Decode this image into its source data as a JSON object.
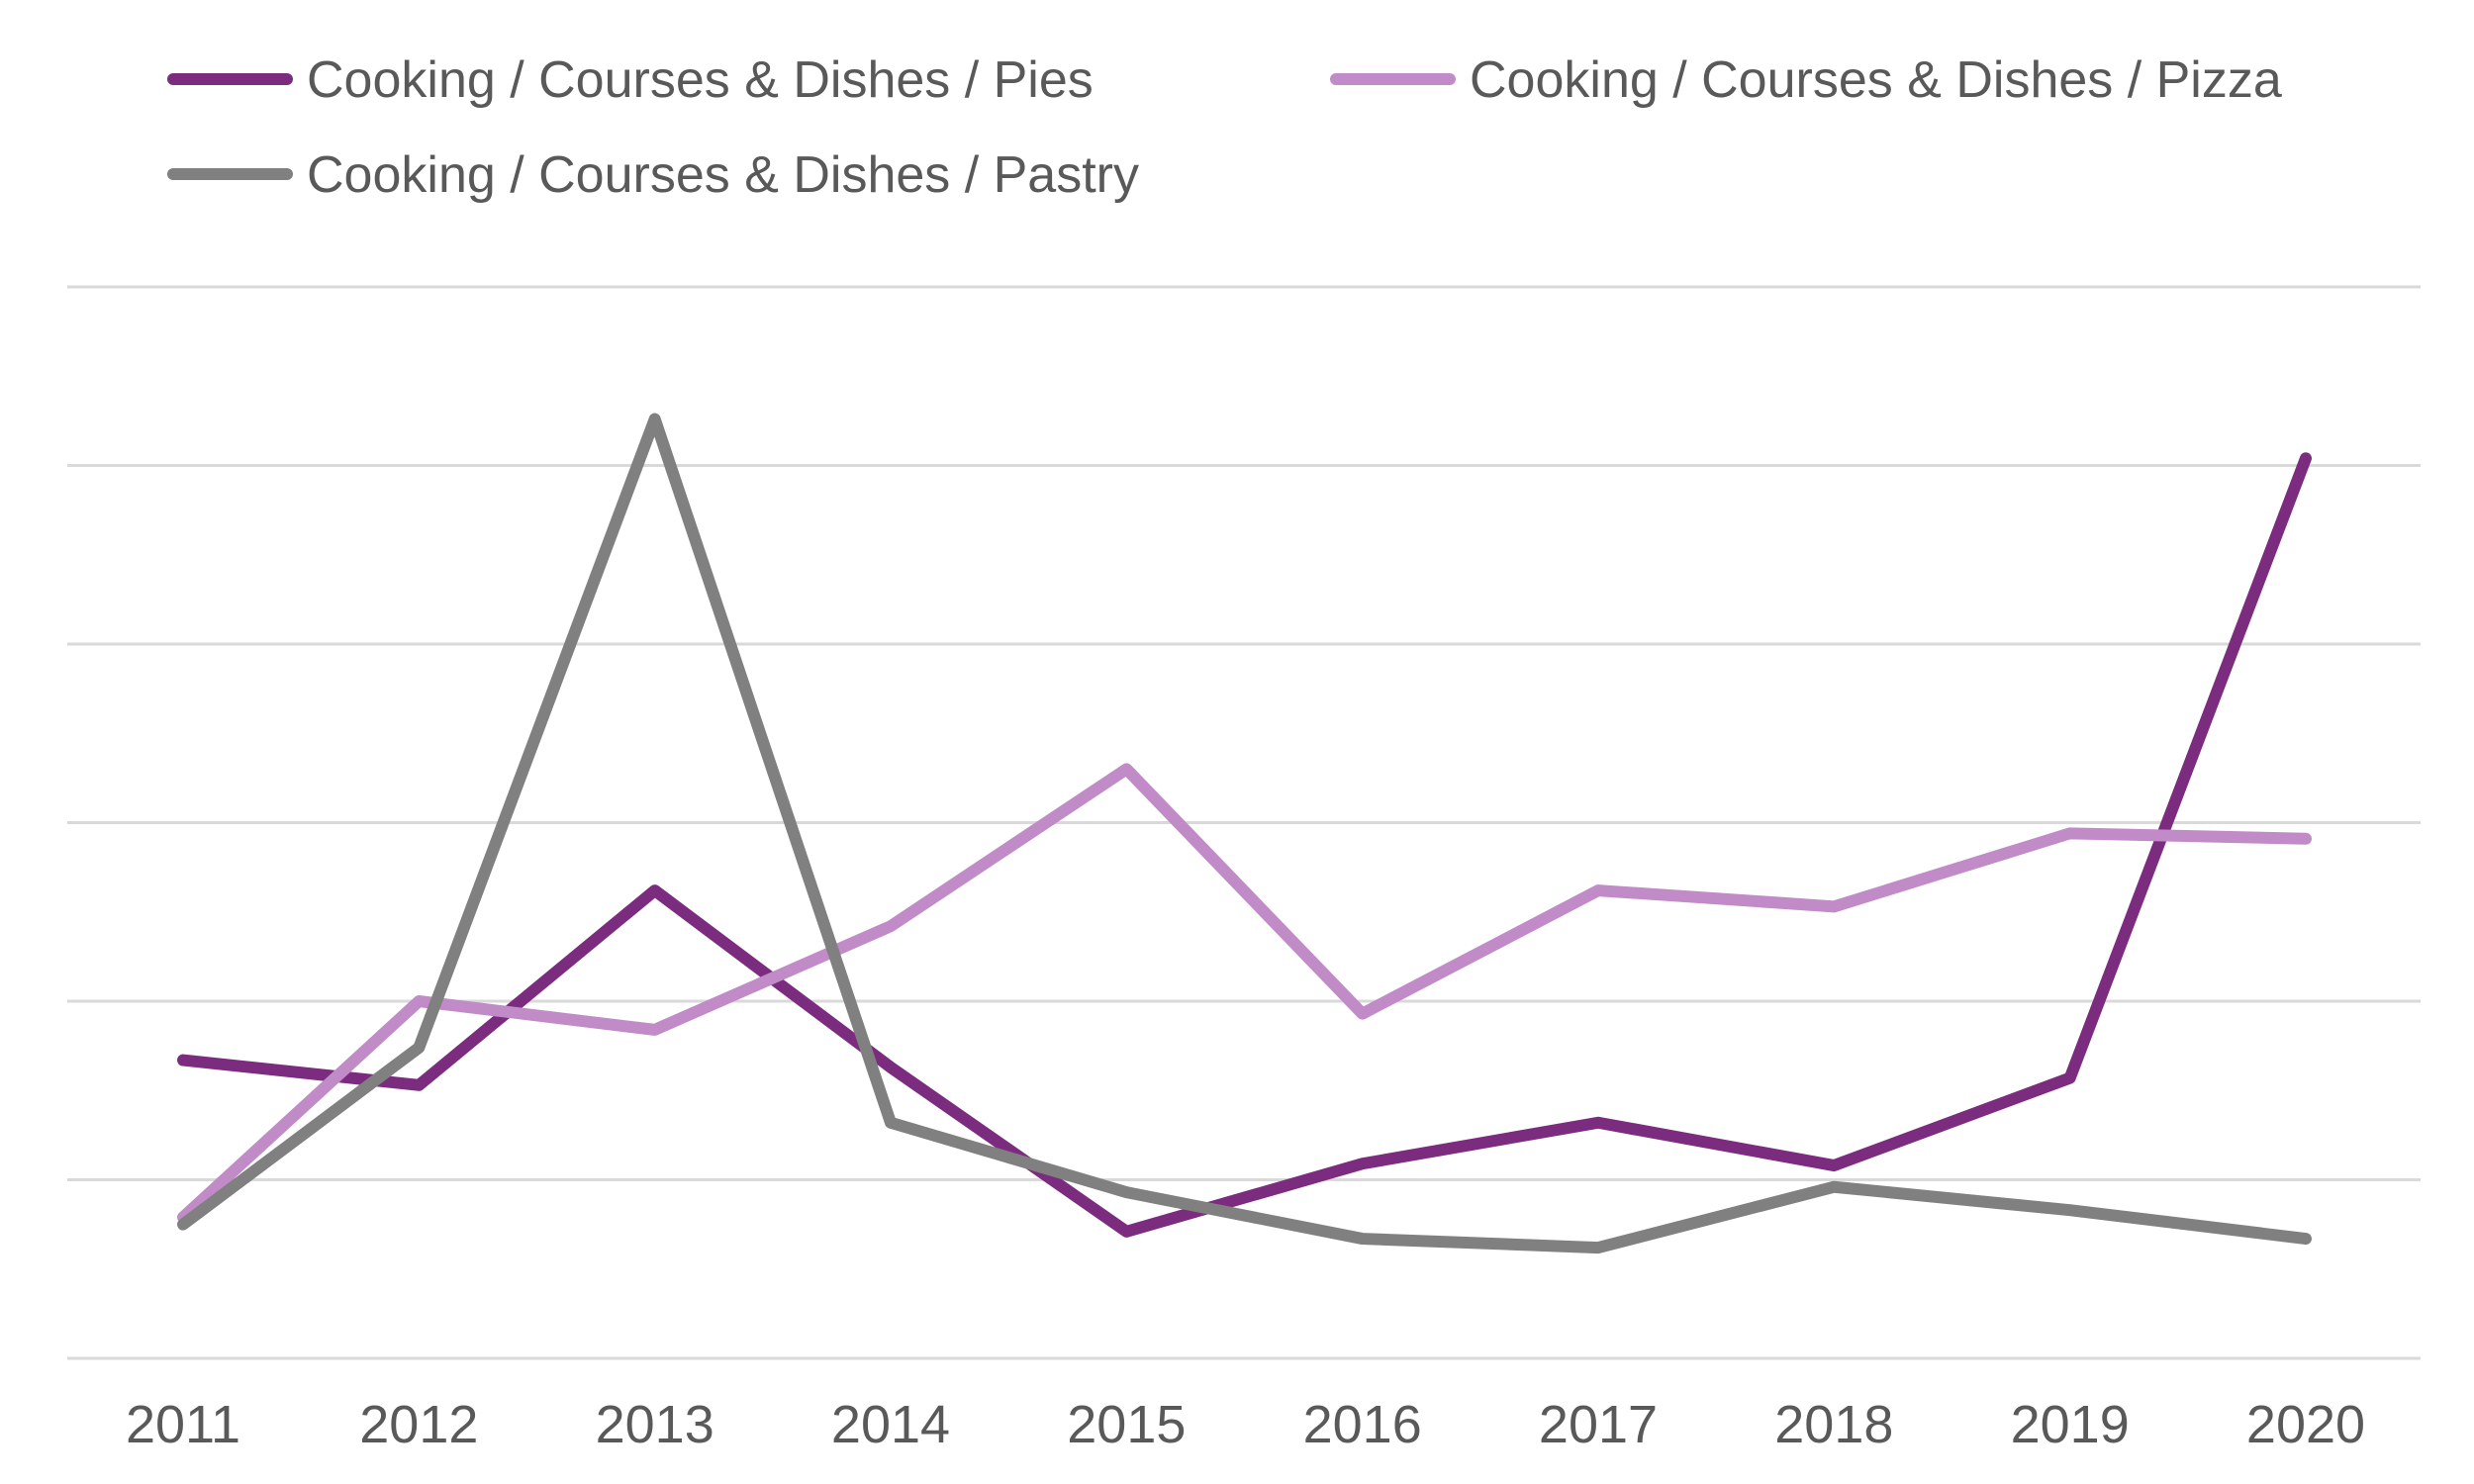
{
  "chart_data": {
    "type": "line",
    "title": "",
    "xlabel": "",
    "ylabel": "",
    "x": [
      "2011",
      "2012",
      "2013",
      "2014",
      "2015",
      "2016",
      "2017",
      "2018",
      "2019",
      "2020"
    ],
    "ylim": [
      0,
      6
    ],
    "grid": true,
    "y_tick_labels_visible": false,
    "legend_position": "top",
    "series": [
      {
        "name": "Cooking / Courses & Dishes / Pies",
        "color": "#7b2c7e",
        "values": [
          1.67,
          1.53,
          2.62,
          1.63,
          0.71,
          1.09,
          1.32,
          1.08,
          1.57,
          5.04
        ]
      },
      {
        "name": "Cooking / Courses & Dishes / Pizza",
        "color": "#c08bc6",
        "values": [
          0.79,
          2.0,
          1.84,
          2.42,
          3.3,
          1.93,
          2.62,
          2.53,
          2.94,
          2.91
        ]
      },
      {
        "name": "Cooking / Courses & Dishes / Pastry",
        "color": "#808080",
        "values": [
          0.75,
          1.74,
          5.26,
          1.32,
          0.93,
          0.67,
          0.62,
          0.96,
          0.83,
          0.67
        ]
      }
    ]
  }
}
